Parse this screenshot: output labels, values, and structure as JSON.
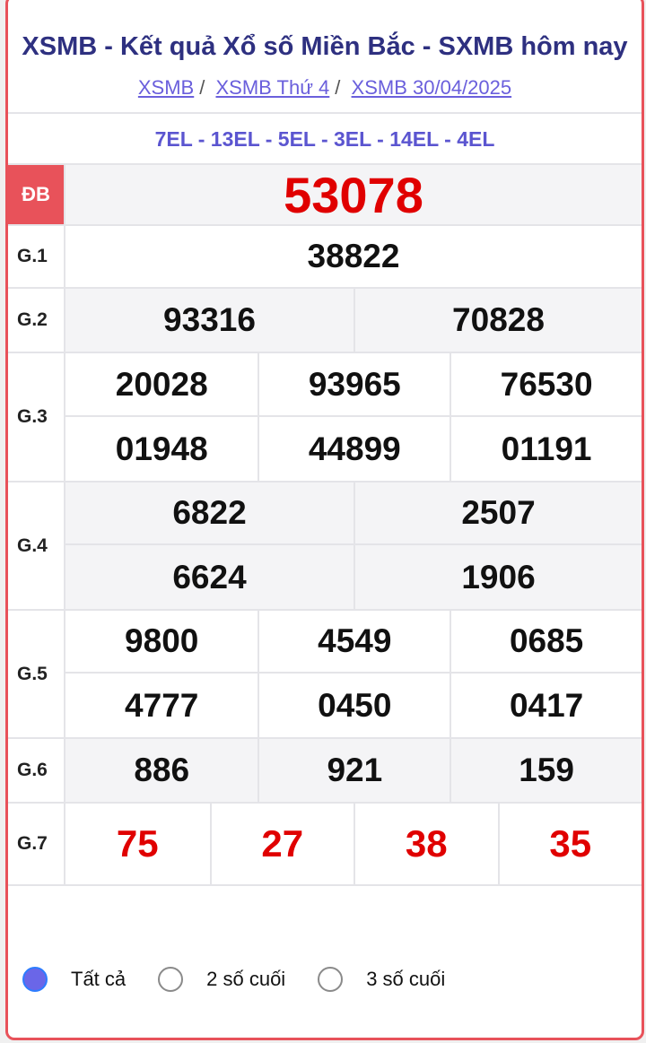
{
  "header": {
    "title": "XSMB - Kết quả Xổ số Miền Bắc - SXMB hôm nay",
    "breadcrumbs": [
      "XSMB",
      "XSMB Thứ 4",
      "XSMB 30/04/2025"
    ]
  },
  "codes": "7EL - 13EL - 5EL - 3EL - 14EL - 4EL",
  "prizes": {
    "db": {
      "label": "ĐB",
      "values": [
        "53078"
      ]
    },
    "g1": {
      "label": "G.1",
      "values": [
        "38822"
      ]
    },
    "g2": {
      "label": "G.2",
      "values": [
        "93316",
        "70828"
      ]
    },
    "g3": {
      "label": "G.3",
      "values": [
        "20028",
        "93965",
        "76530",
        "01948",
        "44899",
        "01191"
      ]
    },
    "g4": {
      "label": "G.4",
      "values": [
        "6822",
        "2507",
        "6624",
        "1906"
      ]
    },
    "g5": {
      "label": "G.5",
      "values": [
        "9800",
        "4549",
        "0685",
        "4777",
        "0450",
        "0417"
      ]
    },
    "g6": {
      "label": "G.6",
      "values": [
        "886",
        "921",
        "159"
      ]
    },
    "g7": {
      "label": "G.7",
      "values": [
        "75",
        "27",
        "38",
        "35"
      ]
    }
  },
  "filter": {
    "options": [
      "Tất cả",
      "2 số cuối",
      "3 số cuối"
    ],
    "selected": "Tất cả"
  },
  "colors": {
    "accent_red": "#e8525a",
    "number_red": "#e00000",
    "title": "#2e3080",
    "link": "#6a5fdc"
  }
}
